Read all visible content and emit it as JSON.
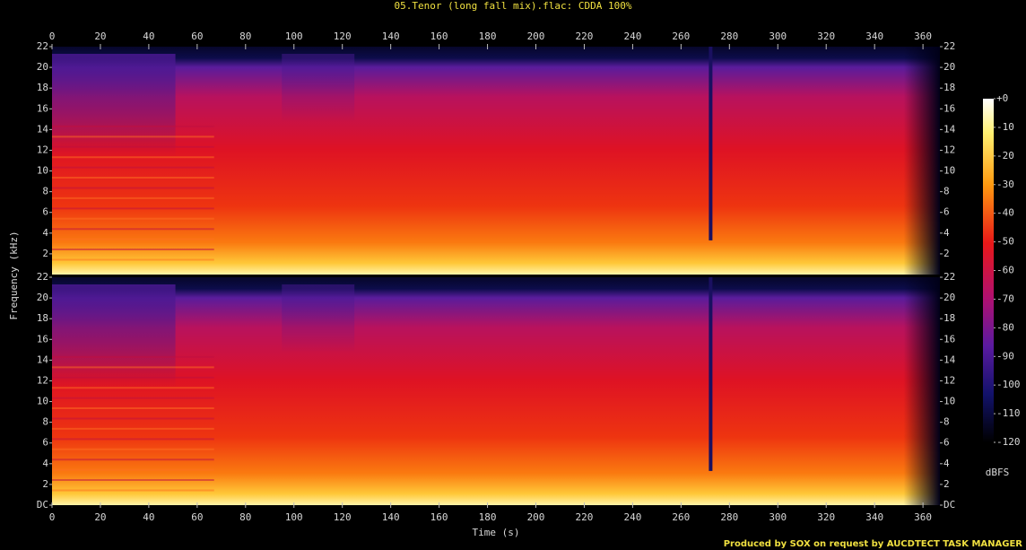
{
  "title": "05.Tenor (long fall mix).flac: CDDA 100%",
  "footer": "Produced by SOX on request by AUCDTECT TASK MANAGER",
  "chart_data": [
    {
      "type": "spectrogram",
      "ylabel": "Frequency (kHz)",
      "xlim": [
        0,
        367
      ],
      "xticks": [
        0,
        20,
        40,
        60,
        80,
        100,
        120,
        140,
        160,
        180,
        200,
        220,
        240,
        260,
        280,
        300,
        320,
        340,
        360
      ],
      "ylim": [
        0,
        22
      ],
      "yticks": [
        2,
        4,
        6,
        8,
        10,
        12,
        14,
        16,
        18,
        20,
        22
      ]
    },
    {
      "type": "spectrogram",
      "xlabel": "Time (s)",
      "xlim": [
        0,
        367
      ],
      "xticks": [
        0,
        20,
        40,
        60,
        80,
        100,
        120,
        140,
        160,
        180,
        200,
        220,
        240,
        260,
        280,
        300,
        320,
        340,
        360
      ],
      "ylim": [
        0,
        22
      ],
      "yticks": [
        {
          "value": 0,
          "label": "DC"
        },
        2,
        4,
        6,
        8,
        10,
        12,
        14,
        16,
        18,
        20,
        22
      ]
    }
  ],
  "colorbar": {
    "label": "dBFS",
    "zlim": [
      -120,
      0
    ],
    "ticks": [
      {
        "value": 0,
        "label": "+0"
      },
      -10,
      -20,
      -30,
      -40,
      -50,
      -60,
      -70,
      -80,
      -90,
      -100,
      -110,
      -120
    ]
  }
}
